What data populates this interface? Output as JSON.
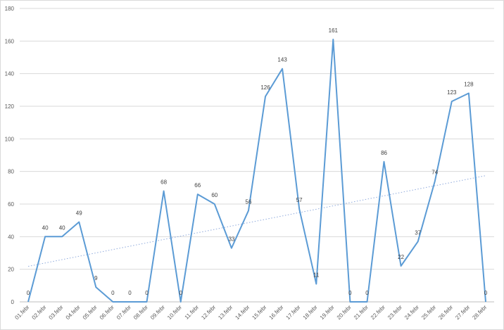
{
  "chart_data": {
    "type": "line",
    "title": "",
    "xlabel": "",
    "ylabel": "",
    "categories": [
      "01.febr",
      "02.febr",
      "03.febr",
      "04.febr",
      "05.febr",
      "06.febr",
      "07.febr",
      "08.febr",
      "09.febr",
      "10.febr",
      "11.febr",
      "12.febr",
      "13.febr",
      "14.febr",
      "15.febr",
      "16.febr",
      "17.febr",
      "18.febr",
      "19.febr",
      "20.febr",
      "21.febr",
      "22.febr",
      "23.febr",
      "24.febr",
      "25.febr",
      "26.febr",
      "27.febr",
      "28.febr"
    ],
    "values": [
      0,
      40,
      40,
      49,
      9,
      0,
      0,
      0,
      68,
      0,
      66,
      60,
      33,
      56,
      126,
      143,
      57,
      11,
      161,
      0,
      0,
      86,
      22,
      37,
      74,
      123,
      128,
      0
    ],
    "ylim": [
      0,
      180
    ],
    "yticks": [
      0,
      20,
      40,
      60,
      80,
      100,
      120,
      140,
      160,
      180
    ],
    "grid": true,
    "trendline": "linear",
    "line_color": "#5b9bd5",
    "trend_color": "#8faadc",
    "legend": "none"
  }
}
